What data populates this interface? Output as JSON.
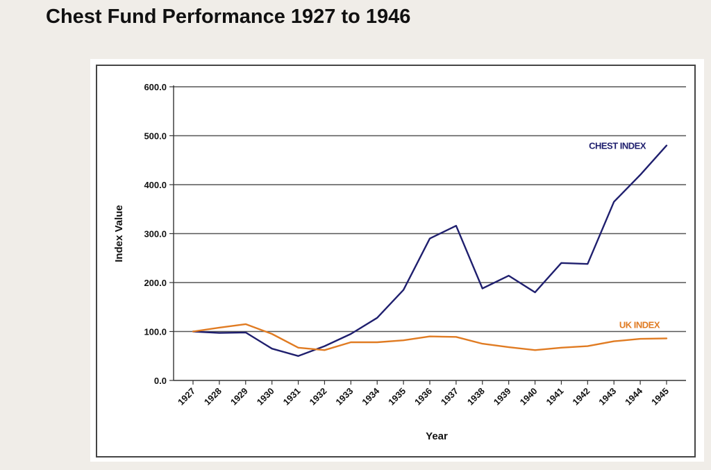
{
  "page": {
    "title": "Chest Fund Performance 1927 to 1946"
  },
  "chart_data": {
    "type": "line",
    "xlabel": "Year",
    "ylabel": "Index Value",
    "ylim": [
      0,
      600
    ],
    "yticks": [
      "0.0",
      "100.0",
      "200.0",
      "300.0",
      "400.0",
      "500.0",
      "600.0"
    ],
    "categories": [
      "1927",
      "1928",
      "1929",
      "1930",
      "1931",
      "1932",
      "1933",
      "1934",
      "1935",
      "1936",
      "1937",
      "1938",
      "1939",
      "1940",
      "1941",
      "1942",
      "1943",
      "1944",
      "1945"
    ],
    "grid": "horizontal",
    "series": [
      {
        "name": "CHEST INDEX",
        "color": "#1f1f6e",
        "values": [
          100,
          97,
          98,
          65,
          50,
          70,
          95,
          128,
          185,
          290,
          316,
          188,
          214,
          180,
          240,
          238,
          365,
          420,
          480
        ]
      },
      {
        "name": "UK INDEX",
        "color": "#e07b22",
        "values": [
          100,
          108,
          115,
          95,
          67,
          62,
          78,
          78,
          82,
          90,
          89,
          75,
          68,
          62,
          67,
          70,
          80,
          85,
          86
        ]
      }
    ]
  }
}
